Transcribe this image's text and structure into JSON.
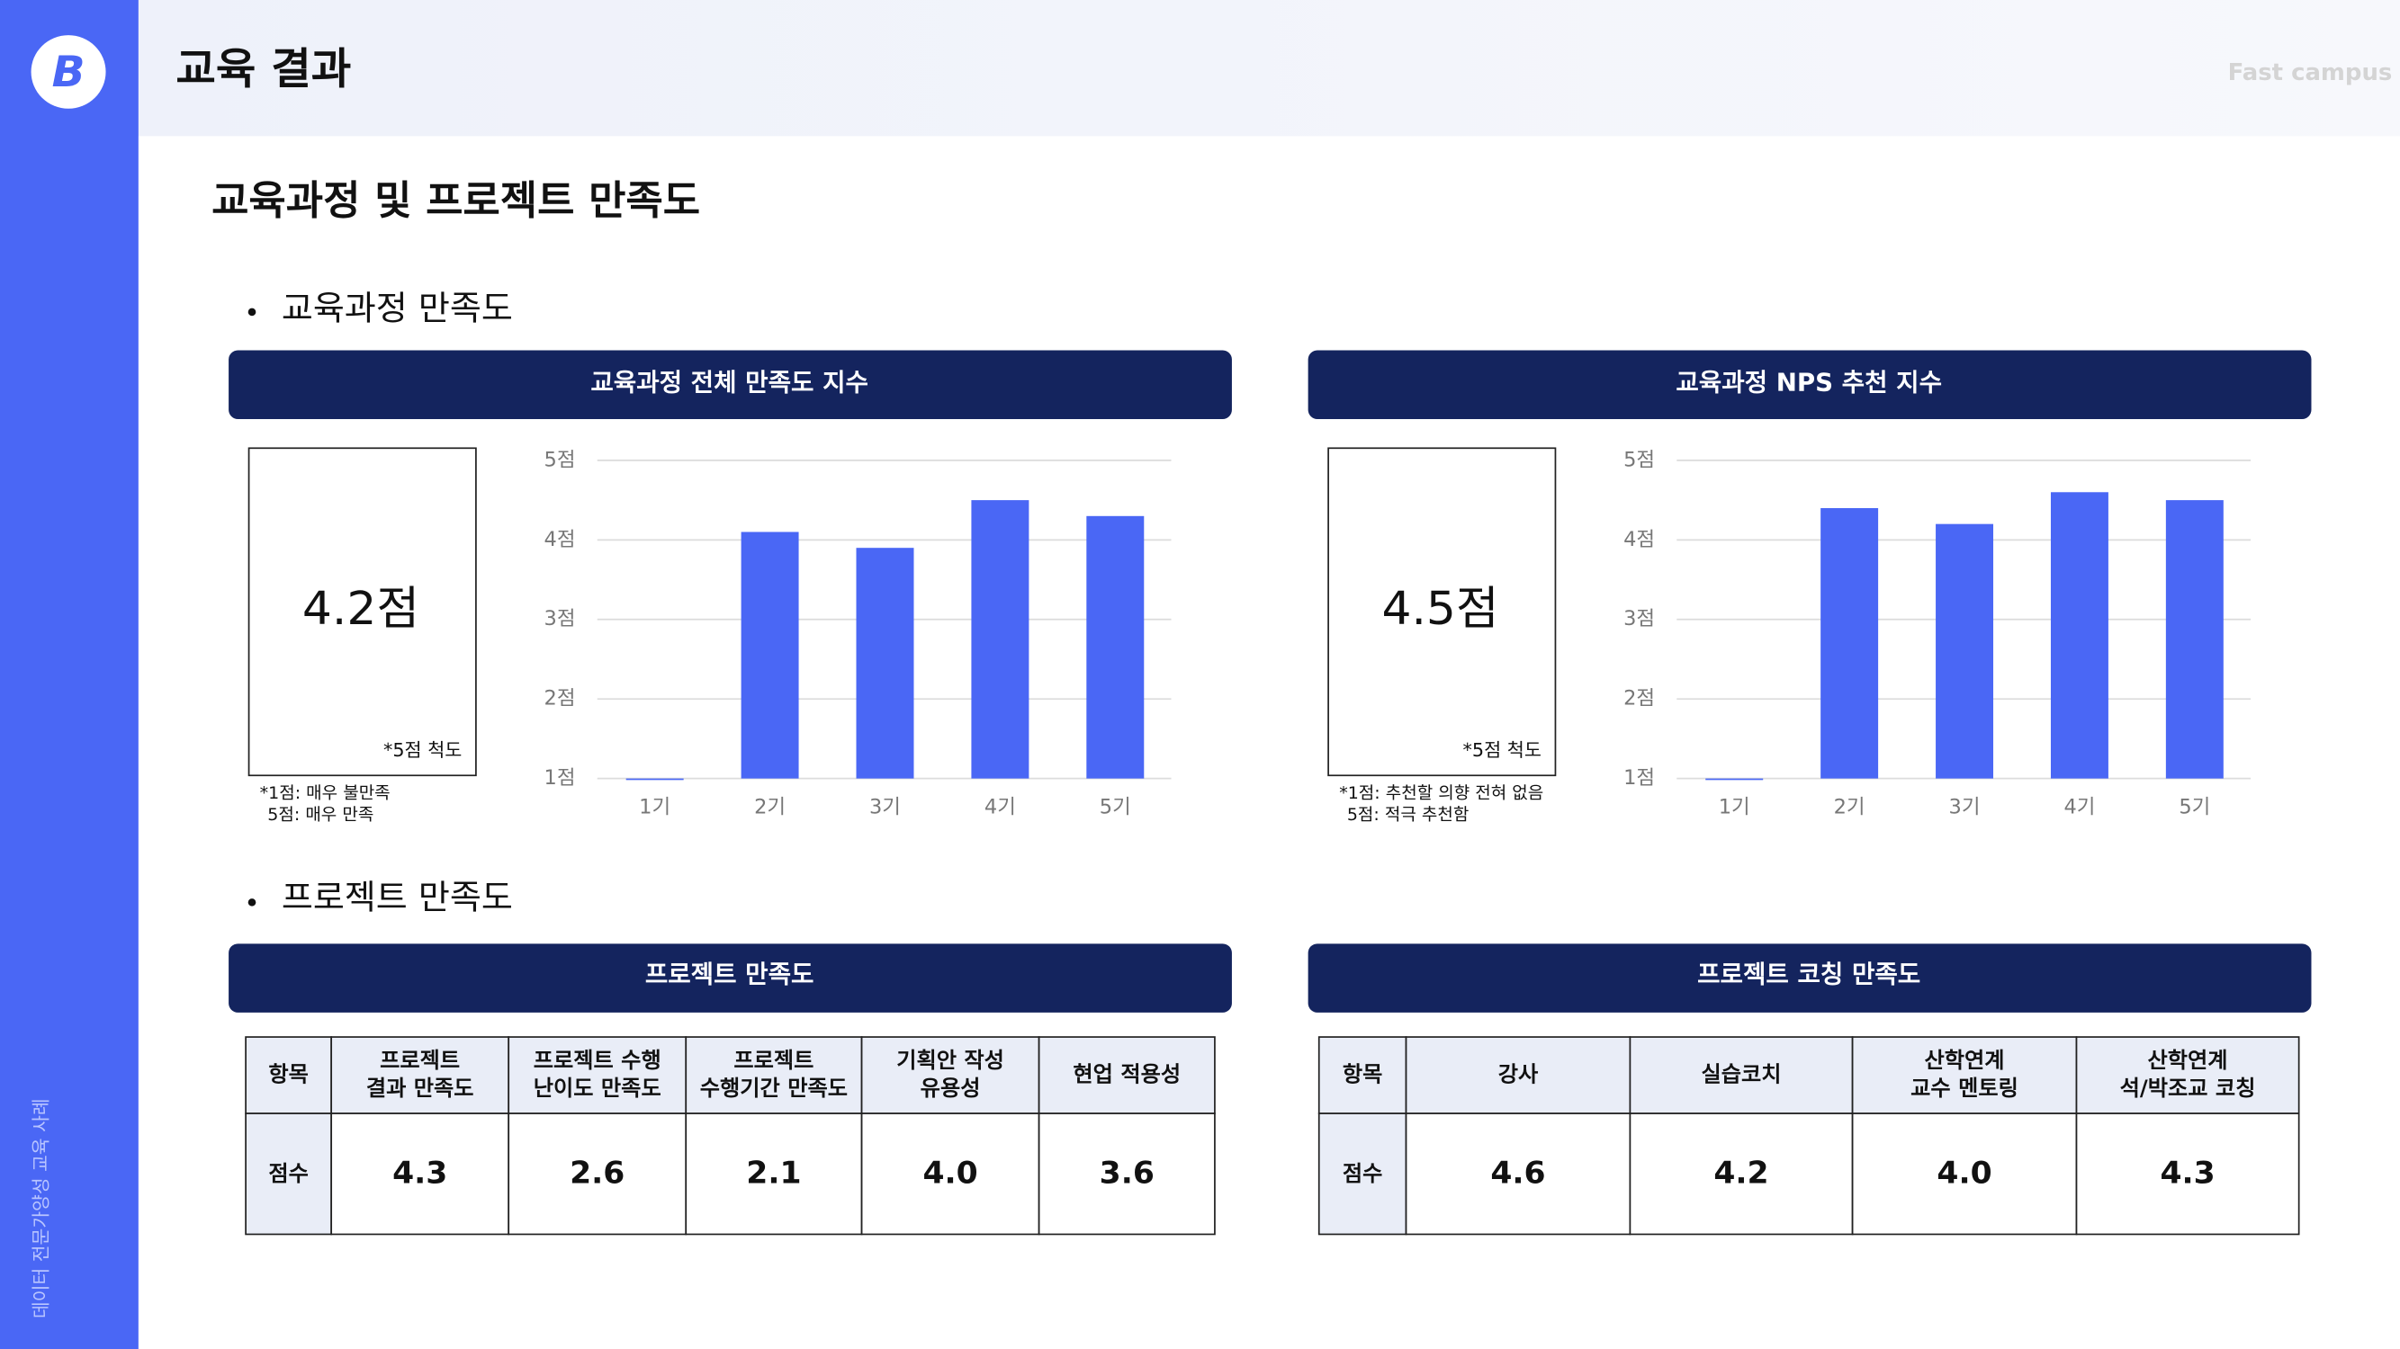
{
  "header": {
    "logo": "B",
    "title": "교육 결과",
    "brand": "Fast campus",
    "sidebar": "데이터 전문가양성 교육 사례"
  },
  "section_title": "교육과정 및 프로젝트 만족도",
  "bullets": [
    "교육과정 만족도",
    "프로젝트 만족도"
  ],
  "chart_data": [
    {
      "type": "bar",
      "title": "교육과정 전체 만족도 지수",
      "score": "4.2점",
      "scale_note": "*5점 척도",
      "notes": [
        "*1점: 매우 불만족",
        "5점: 매우 만족"
      ],
      "categories": [
        "1기",
        "2기",
        "3기",
        "4기",
        "5기"
      ],
      "values": [
        1.0,
        4.1,
        3.9,
        4.5,
        4.3
      ],
      "color": "#4a67f5",
      "ylim": [
        1,
        5
      ],
      "yticks": [
        {
          "value": 1,
          "label": "1점"
        },
        {
          "value": 2,
          "label": "2점"
        },
        {
          "value": 3,
          "label": "3점"
        },
        {
          "value": 4,
          "label": "4점"
        },
        {
          "value": 5,
          "label": "5점"
        }
      ],
      "grid": true
    },
    {
      "type": "bar",
      "title": "교육과정 NPS 추천 지수",
      "score": "4.5점",
      "scale_note": "*5점 척도",
      "notes": [
        "*1점: 추천할 의향 전혀 없음",
        "5점: 적극 추천함"
      ],
      "categories": [
        "1기",
        "2기",
        "3기",
        "4기",
        "5기"
      ],
      "values": [
        1.0,
        4.4,
        4.2,
        4.6,
        4.5
      ],
      "color": "#4a67f5",
      "ylim": [
        1,
        5
      ],
      "yticks": [
        {
          "value": 1,
          "label": "1점"
        },
        {
          "value": 2,
          "label": "2점"
        },
        {
          "value": 3,
          "label": "3점"
        },
        {
          "value": 4,
          "label": "4점"
        },
        {
          "value": 5,
          "label": "5점"
        }
      ],
      "grid": true
    }
  ],
  "tables": [
    {
      "title": "프로젝트  만족도",
      "header": [
        [
          "항목"
        ],
        [
          "프로젝트",
          "결과 만족도"
        ],
        [
          "프로젝트 수행",
          "난이도 만족도"
        ],
        [
          "프로젝트",
          "수행기간 만족도"
        ],
        [
          "기획안 작성",
          "유용성"
        ],
        [
          "현업 적용성"
        ]
      ],
      "row": [
        "점수",
        "4.3",
        "2.6",
        "2.1",
        "4.0",
        "3.6"
      ]
    },
    {
      "title": "프로젝트 코칭 만족도",
      "header": [
        [
          "항목"
        ],
        [
          "강사"
        ],
        [
          "실습코치"
        ],
        [
          "산학연계",
          "교수 멘토링"
        ],
        [
          "산학연계",
          "석/박조교 코칭"
        ]
      ],
      "row": [
        "점수",
        "4.6",
        "4.2",
        "4.0",
        "4.3"
      ]
    }
  ]
}
